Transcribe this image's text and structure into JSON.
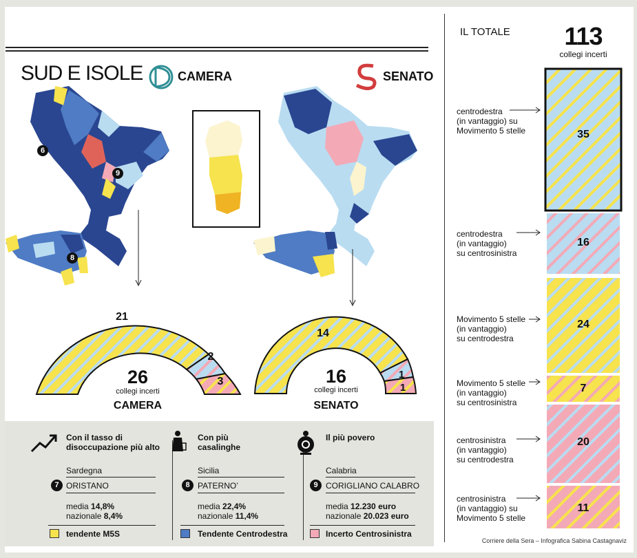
{
  "header": {
    "title": "SUD E ISOLE",
    "camera_label": "CAMERA",
    "senato_label": "SENATO"
  },
  "map_markers": [
    "6",
    "9",
    "8"
  ],
  "colors": {
    "m5s_yellow": "#f6e34d",
    "light_blue": "#b9dcf1",
    "pink": "#f4a9b6",
    "dark_blue": "#2a4690",
    "mid_blue": "#4f7cc4",
    "red": "#e0635a",
    "cream": "#fbf4cf",
    "orange": "#f0b323"
  },
  "camera_arc": {
    "total": "26",
    "sub": "collegi incerti",
    "name": "CAMERA",
    "segments": [
      {
        "value": "21",
        "bg": "#f6e34d",
        "stripe": "#b9dcf1"
      },
      {
        "value": "2",
        "bg": "#b9dcf1",
        "stripe": "#f4a9b6"
      },
      {
        "value": "3",
        "bg": "#f4a9b6",
        "stripe": "#f6e34d"
      }
    ]
  },
  "senato_arc": {
    "total": "16",
    "sub": "collegi incerti",
    "name": "SENATO",
    "segments": [
      {
        "value": "14",
        "bg": "#f6e34d",
        "stripe": "#b9dcf1"
      },
      {
        "value": "1",
        "bg": "#b9dcf1",
        "stripe": "#f4a9b6"
      },
      {
        "value": "1",
        "bg": "#f4a9b6",
        "stripe": "#f6e34d"
      }
    ]
  },
  "totale": {
    "label": "IL TOTALE",
    "number": "113",
    "sub": "collegi incerti",
    "rows": [
      {
        "lines": [
          "centrodestra",
          "(in vantaggio) su",
          "Movimento 5 stelle"
        ],
        "value": "35",
        "bg": "#b9dcf1",
        "stripe": "#f6e34d"
      },
      {
        "lines": [
          "centrodestra",
          "(in vantaggio)",
          "su centrosinistra"
        ],
        "value": "16",
        "bg": "#b9dcf1",
        "stripe": "#f4a9b6"
      },
      {
        "lines": [
          "Movimento 5 stelle",
          "(in vantaggio)",
          "su centrodestra"
        ],
        "value": "24",
        "bg": "#f6e34d",
        "stripe": "#b9dcf1"
      },
      {
        "lines": [
          "Movimento 5 stelle",
          "(in vantaggio)",
          "su centrosinistra"
        ],
        "value": "7",
        "bg": "#f6e34d",
        "stripe": "#f4a9b6"
      },
      {
        "lines": [
          "centrosinistra",
          "(in vantaggio)",
          "su centrodestra"
        ],
        "value": "20",
        "bg": "#f4a9b6",
        "stripe": "#b9dcf1"
      },
      {
        "lines": [
          "centrosinistra",
          "(in vantaggio) su",
          "Movimento 5 stelle"
        ],
        "value": "11",
        "bg": "#f4a9b6",
        "stripe": "#f6e34d"
      }
    ]
  },
  "stats": [
    {
      "title": "Con il tasso di disoccupazione più alto",
      "region": "Sardegna",
      "num": "7",
      "place": "ORISTANO",
      "media_label": "media",
      "media_value": "14,8%",
      "naz_label": "nazionale",
      "naz_value": "8,4%",
      "legend": "tendente M5S",
      "legend_color": "#f6e34d"
    },
    {
      "title": "Con più casalinghe",
      "region": "Sicilia",
      "num": "8",
      "place": "PATERNO’",
      "media_label": "media",
      "media_value": "22,4%",
      "naz_label": "nazionale",
      "naz_value": "11,4%",
      "legend": "Tendente Centrodestra",
      "legend_color": "#4f7cc4"
    },
    {
      "title": "Il più povero",
      "region": "Calabria",
      "num": "9",
      "place": "CORIGLIANO CALABRO",
      "media_label": "media",
      "media_value": "12.230 euro",
      "naz_label": "nazionale",
      "naz_value": "20.023 euro",
      "legend": "Incerto Centrosinistra",
      "legend_color": "#f4a9b6"
    }
  ],
  "credit": "Corriere della Sera – Infografica Sabina Castagnaviz"
}
